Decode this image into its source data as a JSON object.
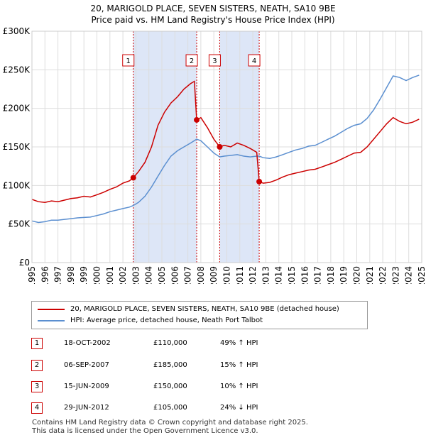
{
  "title_line1": "20, MARIGOLD PLACE, SEVEN SISTERS, NEATH, SA10 9BE",
  "title_line2": "Price paid vs. HM Land Registry's House Price Index (HPI)",
  "chart_data": {
    "type": "line",
    "xlim": [
      1995,
      2025
    ],
    "ylim": [
      0,
      300000
    ],
    "y_ticks": [
      0,
      50000,
      100000,
      150000,
      200000,
      250000,
      300000
    ],
    "y_tick_labels": [
      "£0",
      "£50K",
      "£100K",
      "£150K",
      "£200K",
      "£250K",
      "£300K"
    ],
    "x_ticks": [
      1995,
      1996,
      1997,
      1998,
      1999,
      2000,
      2001,
      2002,
      2003,
      2004,
      2005,
      2006,
      2007,
      2008,
      2009,
      2010,
      2011,
      2012,
      2013,
      2014,
      2015,
      2016,
      2017,
      2018,
      2019,
      2020,
      2021,
      2022,
      2023,
      2024,
      2025
    ],
    "grid": true,
    "shaded_periods": [
      [
        2002.8,
        2007.68
      ],
      [
        2009.45,
        2012.49
      ]
    ],
    "series": [
      {
        "name": "20, MARIGOLD PLACE, SEVEN SISTERS, NEATH, SA10 9BE (detached house)",
        "color": "#cc0000",
        "points": [
          [
            1995.0,
            82000
          ],
          [
            1995.5,
            79000
          ],
          [
            1996.0,
            78000
          ],
          [
            1996.5,
            80000
          ],
          [
            1997.0,
            79000
          ],
          [
            1997.5,
            81000
          ],
          [
            1998.0,
            83000
          ],
          [
            1998.5,
            84000
          ],
          [
            1999.0,
            86000
          ],
          [
            1999.5,
            85000
          ],
          [
            2000.0,
            88000
          ],
          [
            2000.5,
            91000
          ],
          [
            2001.0,
            95000
          ],
          [
            2001.5,
            98000
          ],
          [
            2002.0,
            103000
          ],
          [
            2002.5,
            106000
          ],
          [
            2002.8,
            110000
          ],
          [
            2003.2,
            118000
          ],
          [
            2003.7,
            130000
          ],
          [
            2004.2,
            150000
          ],
          [
            2004.7,
            178000
          ],
          [
            2005.2,
            195000
          ],
          [
            2005.7,
            207000
          ],
          [
            2006.2,
            215000
          ],
          [
            2006.7,
            225000
          ],
          [
            2007.2,
            232000
          ],
          [
            2007.5,
            235000
          ],
          [
            2007.68,
            185000
          ],
          [
            2008.0,
            188000
          ],
          [
            2008.5,
            175000
          ],
          [
            2009.0,
            160000
          ],
          [
            2009.45,
            150000
          ],
          [
            2009.8,
            152000
          ],
          [
            2010.3,
            150000
          ],
          [
            2010.8,
            155000
          ],
          [
            2011.3,
            152000
          ],
          [
            2011.8,
            148000
          ],
          [
            2012.3,
            143000
          ],
          [
            2012.49,
            105000
          ],
          [
            2012.8,
            103000
          ],
          [
            2013.3,
            104000
          ],
          [
            2013.8,
            107000
          ],
          [
            2014.3,
            111000
          ],
          [
            2014.8,
            114000
          ],
          [
            2015.3,
            116000
          ],
          [
            2015.8,
            118000
          ],
          [
            2016.3,
            120000
          ],
          [
            2016.8,
            121000
          ],
          [
            2017.3,
            124000
          ],
          [
            2017.8,
            127000
          ],
          [
            2018.3,
            130000
          ],
          [
            2018.8,
            134000
          ],
          [
            2019.3,
            138000
          ],
          [
            2019.8,
            142000
          ],
          [
            2020.3,
            143000
          ],
          [
            2020.8,
            150000
          ],
          [
            2021.3,
            160000
          ],
          [
            2021.8,
            170000
          ],
          [
            2022.3,
            180000
          ],
          [
            2022.8,
            188000
          ],
          [
            2023.3,
            183000
          ],
          [
            2023.8,
            180000
          ],
          [
            2024.3,
            182000
          ],
          [
            2024.8,
            186000
          ]
        ]
      },
      {
        "name": "HPI: Average price, detached house, Neath Port Talbot",
        "color": "#5b8fd0",
        "points": [
          [
            1995.0,
            54000
          ],
          [
            1995.5,
            52000
          ],
          [
            1996.0,
            53000
          ],
          [
            1996.5,
            55000
          ],
          [
            1997.0,
            55000
          ],
          [
            1997.5,
            56000
          ],
          [
            1998.0,
            57000
          ],
          [
            1998.5,
            58000
          ],
          [
            1999.0,
            58500
          ],
          [
            1999.5,
            59000
          ],
          [
            2000.0,
            61000
          ],
          [
            2000.5,
            63000
          ],
          [
            2001.0,
            66000
          ],
          [
            2001.5,
            68000
          ],
          [
            2002.0,
            70000
          ],
          [
            2002.5,
            72000
          ],
          [
            2002.8,
            74000
          ],
          [
            2003.2,
            78000
          ],
          [
            2003.7,
            86000
          ],
          [
            2004.2,
            98000
          ],
          [
            2004.7,
            112000
          ],
          [
            2005.2,
            126000
          ],
          [
            2005.7,
            138000
          ],
          [
            2006.2,
            145000
          ],
          [
            2006.7,
            150000
          ],
          [
            2007.2,
            155000
          ],
          [
            2007.68,
            160000
          ],
          [
            2008.0,
            158000
          ],
          [
            2008.5,
            150000
          ],
          [
            2009.0,
            142000
          ],
          [
            2009.45,
            137000
          ],
          [
            2009.8,
            138000
          ],
          [
            2010.3,
            139000
          ],
          [
            2010.8,
            140000
          ],
          [
            2011.3,
            138000
          ],
          [
            2011.8,
            137000
          ],
          [
            2012.3,
            138000
          ],
          [
            2012.49,
            138000
          ],
          [
            2012.8,
            136000
          ],
          [
            2013.3,
            135000
          ],
          [
            2013.8,
            137000
          ],
          [
            2014.3,
            140000
          ],
          [
            2014.8,
            143000
          ],
          [
            2015.3,
            146000
          ],
          [
            2015.8,
            148000
          ],
          [
            2016.3,
            151000
          ],
          [
            2016.8,
            152000
          ],
          [
            2017.3,
            156000
          ],
          [
            2017.8,
            160000
          ],
          [
            2018.3,
            164000
          ],
          [
            2018.8,
            169000
          ],
          [
            2019.3,
            174000
          ],
          [
            2019.8,
            178000
          ],
          [
            2020.3,
            180000
          ],
          [
            2020.8,
            187000
          ],
          [
            2021.3,
            198000
          ],
          [
            2021.8,
            212000
          ],
          [
            2022.3,
            227000
          ],
          [
            2022.8,
            242000
          ],
          [
            2023.3,
            240000
          ],
          [
            2023.8,
            236000
          ],
          [
            2024.3,
            240000
          ],
          [
            2024.8,
            243000
          ]
        ]
      }
    ],
    "sale_markers": [
      {
        "label": "1",
        "x": 2002.8,
        "y": 110000
      },
      {
        "label": "2",
        "x": 2007.68,
        "y": 185000
      },
      {
        "label": "3",
        "x": 2009.45,
        "y": 150000
      },
      {
        "label": "4",
        "x": 2012.49,
        "y": 105000
      }
    ]
  },
  "legend": {
    "series1": "20, MARIGOLD PLACE, SEVEN SISTERS, NEATH, SA10 9BE (detached house)",
    "series2": "HPI: Average price, detached house, Neath Port Talbot"
  },
  "colors": {
    "property": "#cc0000",
    "hpi": "#5b8fd0",
    "shade": "#dde6f7"
  },
  "transactions": [
    {
      "n": "1",
      "date": "18-OCT-2002",
      "price": "£110,000",
      "hpi": "49% ↑ HPI"
    },
    {
      "n": "2",
      "date": "06-SEP-2007",
      "price": "£185,000",
      "hpi": "15% ↑ HPI"
    },
    {
      "n": "3",
      "date": "15-JUN-2009",
      "price": "£150,000",
      "hpi": "10% ↑ HPI"
    },
    {
      "n": "4",
      "date": "29-JUN-2012",
      "price": "£105,000",
      "hpi": "24% ↓ HPI"
    }
  ],
  "footer_line1": "Contains HM Land Registry data © Crown copyright and database right 2025.",
  "footer_line2": "This data is licensed under the Open Government Licence v3.0."
}
